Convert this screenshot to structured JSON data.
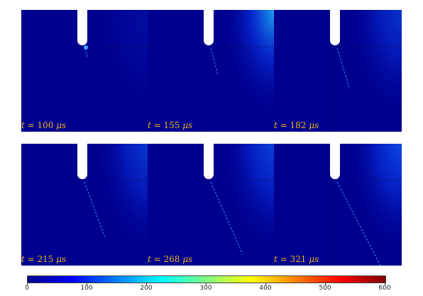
{
  "panels": [
    {
      "id": "p1",
      "t_num": "100",
      "unit": "μs",
      "intensity": 0.15
    },
    {
      "id": "p2",
      "t_num": "155",
      "unit": "μs",
      "intensity": 0.85
    },
    {
      "id": "p3",
      "t_num": "182",
      "unit": "μs",
      "intensity": 0.55
    },
    {
      "id": "p4",
      "t_num": "215",
      "unit": "μs",
      "intensity": 0.6
    },
    {
      "id": "p5",
      "t_num": "268",
      "unit": "μs",
      "intensity": 0.7
    },
    {
      "id": "p6",
      "t_num": "321",
      "unit": "μs",
      "intensity": 0.75
    }
  ],
  "colorbar": {
    "ticks": [
      "0",
      "100",
      "200",
      "300",
      "400",
      "500",
      "600"
    ],
    "min": 0,
    "max": 600,
    "colors": [
      "#00008f",
      "#0000ff",
      "#0080ff",
      "#00ffff",
      "#80ff80",
      "#ffff00",
      "#ff8000",
      "#ff0000",
      "#800000"
    ]
  }
}
